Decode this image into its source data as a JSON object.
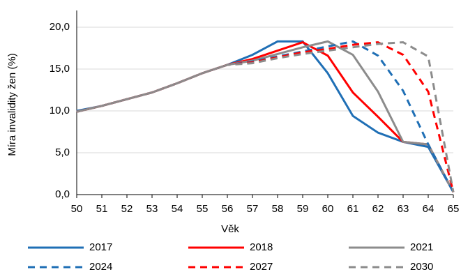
{
  "chart_data": {
    "type": "line",
    "x_label": "Věk",
    "y_label": "Míra invalidity žen (%)",
    "x": [
      50,
      51,
      52,
      53,
      54,
      55,
      56,
      57,
      58,
      59,
      60,
      61,
      62,
      63,
      64,
      65
    ],
    "xlim": [
      50,
      65
    ],
    "xticks": [
      50,
      51,
      52,
      53,
      54,
      55,
      56,
      57,
      58,
      59,
      60,
      61,
      62,
      63,
      64,
      65
    ],
    "ylim": [
      0,
      22
    ],
    "yticks": [
      {
        "value": 0,
        "label": "0,0"
      },
      {
        "value": 5,
        "label": "5,0"
      },
      {
        "value": 10,
        "label": "10,0"
      },
      {
        "value": 15,
        "label": "15,0"
      },
      {
        "value": 20,
        "label": "20,0"
      }
    ],
    "grid": true,
    "legend": "bottom",
    "series": [
      {
        "name": "2017",
        "color": "#1f6fb5",
        "dashed": false,
        "values": [
          10.0,
          10.6,
          11.4,
          12.2,
          13.3,
          14.5,
          15.5,
          16.7,
          18.3,
          18.3,
          14.5,
          9.4,
          7.4,
          6.3,
          5.7,
          0.3
        ]
      },
      {
        "name": "2018",
        "color": "#ff0000",
        "dashed": false,
        "values": [
          9.9,
          10.6,
          11.4,
          12.2,
          13.3,
          14.5,
          15.5,
          16.2,
          17.2,
          18.2,
          16.6,
          12.2,
          9.3,
          6.3,
          6.0,
          0.3
        ]
      },
      {
        "name": "2021",
        "color": "#8c8c8c",
        "dashed": false,
        "values": [
          9.9,
          10.6,
          11.4,
          12.2,
          13.3,
          14.5,
          15.5,
          16.0,
          16.8,
          17.6,
          18.3,
          16.7,
          12.3,
          6.3,
          6.0,
          0.3
        ]
      },
      {
        "name": "2024",
        "color": "#1f6fb5",
        "dashed": true,
        "values": [
          9.9,
          10.6,
          11.4,
          12.2,
          13.3,
          14.5,
          15.5,
          15.9,
          16.5,
          17.1,
          17.7,
          18.3,
          16.6,
          12.4,
          6.0,
          0.3
        ]
      },
      {
        "name": "2027",
        "color": "#ff0000",
        "dashed": true,
        "values": [
          9.9,
          10.6,
          11.4,
          12.2,
          13.3,
          14.5,
          15.5,
          15.8,
          16.4,
          17.0,
          17.4,
          17.9,
          18.2,
          16.7,
          12.3,
          0.3
        ]
      },
      {
        "name": "2030",
        "color": "#8c8c8c",
        "dashed": true,
        "values": [
          9.9,
          10.6,
          11.4,
          12.2,
          13.3,
          14.5,
          15.5,
          15.7,
          16.3,
          16.8,
          17.2,
          17.6,
          18.0,
          18.2,
          16.5,
          0.3
        ]
      }
    ]
  }
}
